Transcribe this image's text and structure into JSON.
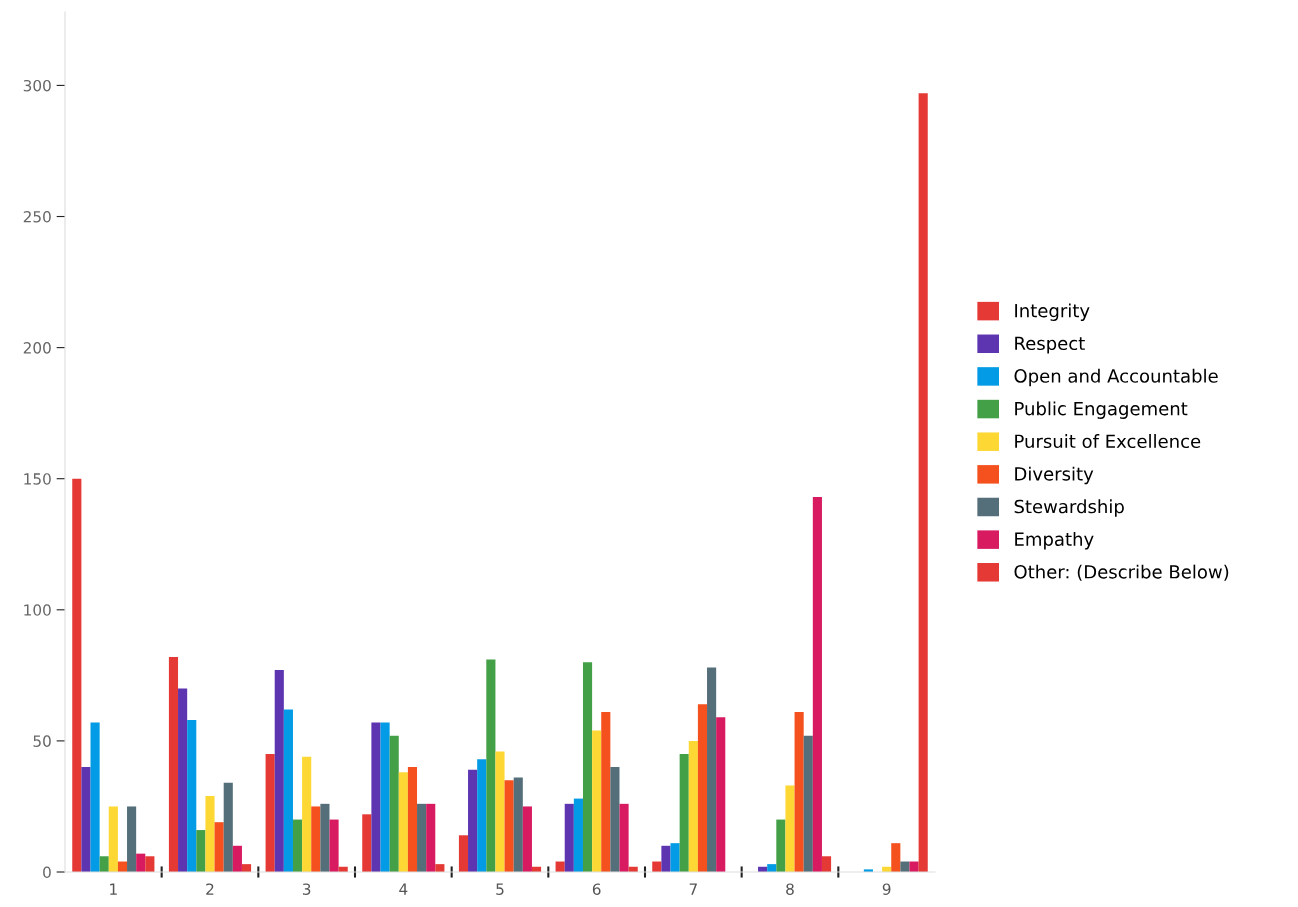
{
  "chart_data": {
    "type": "bar",
    "categories": [
      "1",
      "2",
      "3",
      "4",
      "5",
      "6",
      "7",
      "8",
      "9"
    ],
    "series": [
      {
        "name": "Integrity",
        "color": "#e53935",
        "values": [
          150,
          82,
          45,
          22,
          14,
          4,
          4,
          0,
          0
        ]
      },
      {
        "name": "Respect",
        "color": "#5e35b1",
        "values": [
          40,
          70,
          77,
          57,
          39,
          26,
          10,
          2,
          0
        ]
      },
      {
        "name": "Open and Accountable",
        "color": "#039be5",
        "values": [
          57,
          58,
          62,
          57,
          43,
          28,
          11,
          3,
          1
        ]
      },
      {
        "name": "Public Engagement",
        "color": "#43a047",
        "values": [
          6,
          16,
          20,
          52,
          81,
          80,
          45,
          20,
          0
        ]
      },
      {
        "name": "Pursuit of Excellence",
        "color": "#fdd835",
        "values": [
          25,
          29,
          44,
          38,
          46,
          54,
          50,
          33,
          2
        ]
      },
      {
        "name": "Diversity",
        "color": "#f4511e",
        "values": [
          4,
          19,
          25,
          40,
          35,
          61,
          64,
          61,
          11
        ]
      },
      {
        "name": "Stewardship",
        "color": "#546e7a",
        "values": [
          25,
          34,
          26,
          26,
          36,
          40,
          78,
          52,
          4
        ]
      },
      {
        "name": "Empathy",
        "color": "#d81b60",
        "values": [
          7,
          10,
          20,
          26,
          25,
          26,
          59,
          143,
          4
        ]
      },
      {
        "name": "Other: (Describe Below)",
        "color": "#e53935",
        "values": [
          6,
          3,
          2,
          3,
          2,
          2,
          0,
          6,
          297
        ]
      }
    ],
    "ylim": [
      0,
      328
    ],
    "yticks": [
      0,
      50,
      100,
      150,
      200,
      250,
      300
    ],
    "grid": false,
    "legend": "right"
  }
}
